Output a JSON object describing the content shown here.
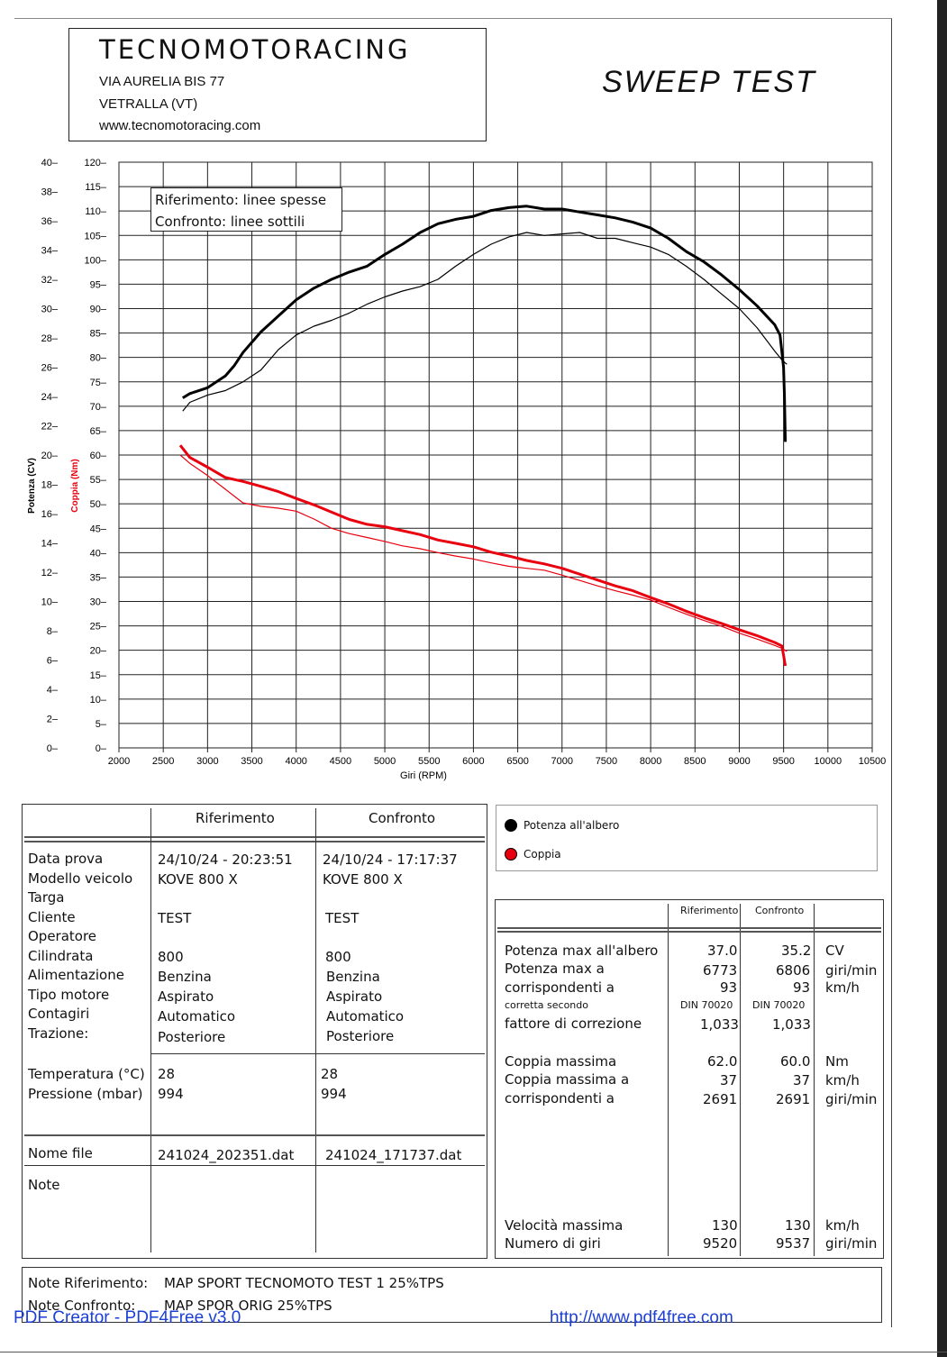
{
  "header": {
    "company": "TECNOMOTORACING",
    "address": "VIA AURELIA BIS 77",
    "city": "VETRALLA (VT)",
    "website": "www.tecnomotoracing.com",
    "title": "SWEEP TEST"
  },
  "chart_data": {
    "type": "line",
    "xlabel": "Giri (RPM)",
    "ylabel_left": "Potenza (CV)",
    "ylabel_torque": "Coppia (Nm)",
    "x_ticks": [
      2000,
      2500,
      3000,
      3500,
      4000,
      4500,
      5000,
      5500,
      6000,
      6500,
      7000,
      7500,
      8000,
      8500,
      9000,
      9500,
      10000,
      10500
    ],
    "xlim": [
      2000,
      10500
    ],
    "power_ticks": [
      0,
      2,
      4,
      6,
      8,
      10,
      12,
      14,
      16,
      18,
      20,
      22,
      24,
      26,
      28,
      30,
      32,
      34,
      36,
      38,
      40
    ],
    "power_lim": [
      0,
      40
    ],
    "torque_ticks": [
      0,
      5,
      10,
      15,
      20,
      25,
      30,
      35,
      40,
      45,
      50,
      55,
      60,
      65,
      70,
      75,
      80,
      85,
      90,
      95,
      100,
      105,
      110,
      115,
      120
    ],
    "torque_lim": [
      0,
      120
    ],
    "grid": true,
    "legend": [
      "Riferimento: linee spesse",
      "Confronto: linee sottili"
    ],
    "series": [
      {
        "name": "Riferimento",
        "quantity": "Potenza all'albero",
        "color": "#000000",
        "style": "thick",
        "axis": "power",
        "x": [
          2720,
          2800,
          3000,
          3200,
          3300,
          3400,
          3600,
          3800,
          4000,
          4200,
          4400,
          4600,
          4800,
          5000,
          5200,
          5400,
          5600,
          5800,
          6000,
          6200,
          6400,
          6600,
          6800,
          7000,
          7200,
          7400,
          7600,
          7800,
          8000,
          8200,
          8400,
          8600,
          8800,
          9000,
          9200,
          9400,
          9460,
          9500,
          9510,
          9520
        ],
        "y": [
          23.9,
          24.2,
          24.6,
          25.4,
          26.1,
          27.0,
          28.4,
          29.5,
          30.6,
          31.4,
          32.0,
          32.5,
          32.9,
          33.7,
          34.4,
          35.2,
          35.8,
          36.1,
          36.3,
          36.7,
          36.9,
          37.0,
          36.8,
          36.8,
          36.6,
          36.4,
          36.2,
          35.9,
          35.5,
          34.8,
          33.9,
          33.2,
          32.3,
          31.3,
          30.2,
          28.9,
          28.2,
          26.0,
          24.0,
          20.9
        ]
      },
      {
        "name": "Confronto",
        "quantity": "Potenza all'albero",
        "color": "#000000",
        "style": "thin",
        "axis": "power",
        "x": [
          2720,
          2800,
          3000,
          3200,
          3400,
          3600,
          3800,
          4000,
          4200,
          4400,
          4600,
          4800,
          5000,
          5200,
          5400,
          5600,
          5800,
          6000,
          6200,
          6400,
          6600,
          6800,
          7000,
          7200,
          7400,
          7600,
          7800,
          8000,
          8200,
          8400,
          8600,
          8800,
          9000,
          9200,
          9400,
          9480,
          9537
        ],
        "y": [
          23.0,
          23.6,
          24.1,
          24.4,
          25.0,
          25.8,
          27.2,
          28.2,
          28.8,
          29.2,
          29.7,
          30.3,
          30.8,
          31.2,
          31.5,
          32.0,
          32.9,
          33.7,
          34.4,
          34.9,
          35.2,
          35.0,
          35.1,
          35.2,
          34.8,
          34.8,
          34.5,
          34.2,
          33.7,
          32.9,
          32.0,
          31.0,
          30.0,
          28.7,
          27.1,
          26.5,
          26.2
        ]
      },
      {
        "name": "Riferimento",
        "quantity": "Coppia",
        "color": "#e8000f",
        "style": "thick",
        "axis": "torque",
        "x": [
          2691,
          2800,
          3000,
          3200,
          3400,
          3600,
          3800,
          4000,
          4200,
          4400,
          4600,
          4800,
          5000,
          5200,
          5400,
          5600,
          5800,
          6000,
          6200,
          6400,
          6600,
          6800,
          7000,
          7200,
          7400,
          7600,
          7800,
          8000,
          8200,
          8400,
          8600,
          8800,
          9000,
          9200,
          9400,
          9480,
          9500,
          9520
        ],
        "y": [
          62.0,
          59.5,
          57.5,
          55.4,
          54.6,
          53.6,
          52.5,
          51.1,
          49.8,
          48.3,
          46.8,
          45.8,
          45.3,
          44.5,
          43.7,
          42.6,
          41.9,
          41.2,
          40.1,
          39.3,
          38.4,
          37.7,
          36.8,
          35.6,
          34.4,
          33.2,
          32.2,
          30.8,
          29.5,
          28.0,
          26.7,
          25.5,
          24.2,
          23.0,
          21.6,
          20.9,
          19.0,
          16.8
        ]
      },
      {
        "name": "Confronto",
        "quantity": "Coppia",
        "color": "#e8000f",
        "style": "thin",
        "axis": "torque",
        "x": [
          2691,
          2800,
          3000,
          3200,
          3400,
          3600,
          3800,
          4000,
          4200,
          4400,
          4600,
          4800,
          5000,
          5200,
          5400,
          5600,
          5800,
          6000,
          6200,
          6400,
          6600,
          6800,
          7000,
          7200,
          7400,
          7600,
          7800,
          8000,
          8200,
          8400,
          8600,
          8800,
          9000,
          9200,
          9400,
          9480,
          9537
        ],
        "y": [
          60.0,
          58.3,
          55.8,
          53.0,
          50.2,
          49.5,
          49.1,
          48.5,
          46.9,
          45.0,
          43.9,
          43.1,
          42.3,
          41.4,
          40.8,
          40.0,
          39.3,
          38.7,
          37.9,
          37.2,
          36.8,
          36.4,
          35.4,
          34.3,
          33.2,
          32.2,
          31.3,
          30.3,
          28.8,
          27.4,
          26.1,
          24.9,
          23.5,
          22.3,
          21.0,
          20.4,
          19.8
        ]
      }
    ]
  },
  "legend": {
    "line1": "Riferimento: linee spesse",
    "line2": "Confronto: linee sottili"
  },
  "info": {
    "col_ref": "Riferimento",
    "col_cmp": "Confronto",
    "labels": [
      "Data prova",
      "Modello veicolo",
      "Targa",
      "Cliente",
      "Operatore",
      "Cilindrata",
      "Alimentazione",
      "Tipo motore",
      "Contagiri",
      "Trazione:"
    ],
    "ref": {
      "data": "24/10/24 - 20:23:51",
      "modello": "KOVE 800 X",
      "cliente": "TEST",
      "cilindrata": "800",
      "alimentazione": "Benzina",
      "tipo": "Aspirato",
      "contagiri": "Automatico",
      "trazione": "Posteriore"
    },
    "cmp": {
      "data": "24/10/24 - 17:17:37",
      "modello": "KOVE 800 X",
      "cliente": "TEST",
      "cilindrata": "800",
      "alimentazione": "Benzina",
      "tipo": "Aspirato",
      "contagiri": "Automatico",
      "trazione": "Posteriore"
    },
    "temp_label": "Temperatura (°C)",
    "press_label": "Pressione (mbar)",
    "temp_ref": "28",
    "press_ref": "994",
    "temp_cmp": "28",
    "press_cmp": "994",
    "file_label": "Nome file",
    "file_ref": "241024_202351.dat",
    "file_cmp": "241024_171737.dat",
    "note_label": "Note"
  },
  "series_legend": {
    "power": "Potenza all'albero",
    "torque": "Coppia",
    "power_color": "#000000",
    "torque_color": "#e8000f"
  },
  "results": {
    "col_ref": "Riferimento",
    "col_cmp": "Confronto",
    "pmax_label": "Potenza max all'albero",
    "pmax_ref": "37.0",
    "pmax_cmp": "35.2",
    "pmax_unit": "CV",
    "pmaxa_label": "Potenza max a",
    "pmaxa_ref": "6773",
    "pmaxa_cmp": "6806",
    "pmaxa_unit": "giri/min",
    "corr_label": "corrispondenti a",
    "corr_ref": "93",
    "corr_cmp": "93",
    "corr_unit": "km/h",
    "din_label": "corretta secondo",
    "din_ref": "DIN 70020",
    "din_cmp": "DIN 70020",
    "fatt_label": "fattore di correzione",
    "fatt_ref": "1,033",
    "fatt_cmp": "1,033",
    "cmax_label": "Coppia massima",
    "cmax_ref": "62.0",
    "cmax_cmp": "60.0",
    "cmax_unit": "Nm",
    "cmaxa_label": "Coppia massima a",
    "cmaxa_ref": "37",
    "cmaxa_cmp": "37",
    "cmaxa_unit": "km/h",
    "ccorr_label": "corrispondenti a",
    "ccorr_ref": "2691",
    "ccorr_cmp": "2691",
    "ccorr_unit": "giri/min",
    "vmax_label": "Velocità massima",
    "vmax_ref": "130",
    "vmax_cmp": "130",
    "vmax_unit": "km/h",
    "ngiri_label": "Numero di giri",
    "ngiri_ref": "9520",
    "ngiri_cmp": "9537",
    "ngiri_unit": "giri/min"
  },
  "notes": {
    "ref_label": "Note Riferimento:",
    "ref_value": "MAP SPORT TECNOMOTO TEST 1 25%TPS",
    "cmp_label": "Note Confronto:",
    "cmp_value": "MAP SPOR ORIG 25%TPS"
  },
  "footer": {
    "creator": "PDF Creator - PDF4Free v3.0",
    "url": "http://www.pdf4free.com"
  }
}
